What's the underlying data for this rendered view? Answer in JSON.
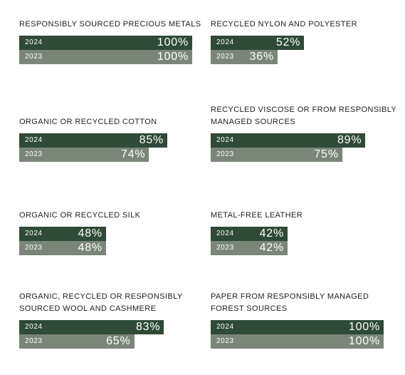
{
  "chart_data": {
    "type": "bar",
    "orientation": "horizontal",
    "series_labels": [
      "2024",
      "2023"
    ],
    "colors": {
      "2024": "#2f4a36",
      "2023": "#7a8678"
    },
    "xlim": [
      0,
      100
    ],
    "unit": "%",
    "panels": [
      {
        "title": "RESPONSIBLY SOURCED PRECIOUS METALS",
        "values": {
          "2024": 100,
          "2023": 100
        }
      },
      {
        "title": "RECYCLED NYLON AND POLYESTER",
        "values": {
          "2024": 52,
          "2023": 36
        }
      },
      {
        "title": "ORGANIC OR RECYCLED COTTON",
        "values": {
          "2024": 85,
          "2023": 74
        }
      },
      {
        "title": "RECYCLED VISCOSE OR FROM RESPONSIBLY MANAGED SOURCES",
        "values": {
          "2024": 89,
          "2023": 75
        }
      },
      {
        "title": "ORGANIC OR RECYCLED SILK",
        "values": {
          "2024": 48,
          "2023": 48
        }
      },
      {
        "title": "METAL-FREE LEATHER",
        "values": {
          "2024": 42,
          "2023": 42
        }
      },
      {
        "title": "ORGANIC, RECYCLED OR RESPONSIBLY SOURCED WOOL AND CASHMERE",
        "values": {
          "2024": 83,
          "2023": 65
        }
      },
      {
        "title": "PAPER FROM RESPONSIBLY MANAGED FOREST SOURCES",
        "values": {
          "2024": 100,
          "2023": 100
        }
      }
    ]
  }
}
